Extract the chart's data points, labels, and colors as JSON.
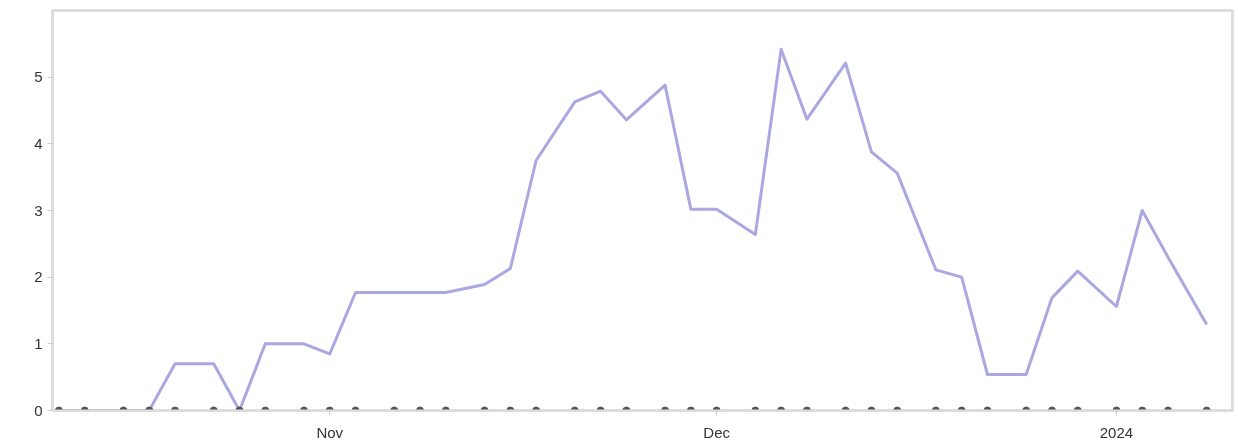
{
  "chart_data": {
    "type": "line",
    "x": [
      "2023-10-11",
      "2023-10-13",
      "2023-10-16",
      "2023-10-18",
      "2023-10-20",
      "2023-10-23",
      "2023-10-25",
      "2023-10-27",
      "2023-10-30",
      "2023-11-01",
      "2023-11-03",
      "2023-11-06",
      "2023-11-08",
      "2023-11-10",
      "2023-11-13",
      "2023-11-15",
      "2023-11-17",
      "2023-11-20",
      "2023-11-22",
      "2023-11-24",
      "2023-11-27",
      "2023-11-29",
      "2023-12-01",
      "2023-12-04",
      "2023-12-06",
      "2023-12-08",
      "2023-12-11",
      "2023-12-13",
      "2023-12-15",
      "2023-12-18",
      "2023-12-20",
      "2023-12-22",
      "2023-12-25",
      "2023-12-27",
      "2023-12-29",
      "2024-01-01",
      "2024-01-03",
      "2024-01-05",
      "2024-01-08"
    ],
    "series": [
      {
        "color": "#aaa8e0",
        "marker": "none",
        "line_style": "solid",
        "values": [
          0,
          0,
          0,
          0,
          0.7,
          0.7,
          0,
          1.0,
          1.0,
          0.85,
          1.77,
          1.77,
          1.77,
          1.77,
          1.89,
          2.13,
          3.75,
          4.63,
          4.79,
          4.36,
          4.88,
          3.02,
          3.02,
          2.64,
          5.42,
          4.37,
          5.21,
          3.88,
          3.56,
          2.11,
          2.0,
          0.54,
          0.54,
          1.69,
          2.09,
          1.56,
          3.0,
          2.3,
          1.29
        ]
      },
      {
        "type": "scatter",
        "color": "#555555",
        "marker": "circle",
        "values": [
          0,
          0,
          0,
          0,
          0,
          0,
          0,
          0,
          0,
          0,
          0,
          0,
          0,
          0,
          0,
          0,
          0,
          0,
          0,
          0,
          0,
          0,
          0,
          0,
          0,
          0,
          0,
          0,
          0,
          0,
          0,
          0,
          0,
          0,
          0,
          0,
          0,
          0,
          0
        ]
      }
    ],
    "xlim": [
      "2023-10-10T12:00",
      "2024-01-10"
    ],
    "xticks": [
      {
        "value": "2023-11-01",
        "label": "Nov"
      },
      {
        "value": "2023-12-01",
        "label": "Dec"
      },
      {
        "value": "2024-01-01",
        "label": "2024"
      }
    ],
    "ylim": [
      0,
      6
    ],
    "yticks": [
      0,
      1,
      2,
      3,
      4,
      5
    ],
    "grid": false
  }
}
